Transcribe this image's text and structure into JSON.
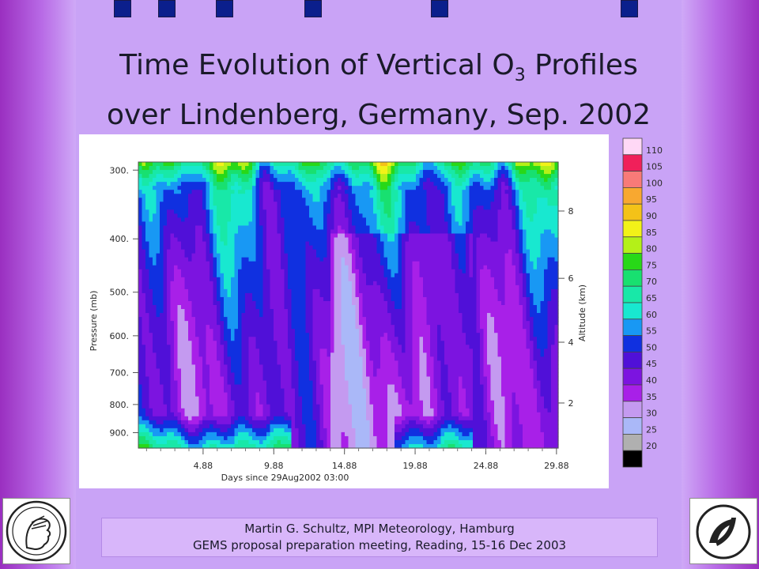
{
  "slide": {
    "title_line1_prefix": "Time Evolution of Vertical O",
    "title_line1_sub": "3",
    "title_line1_suffix": " Profiles",
    "title_line2": "over Lindenberg, Germany, Sep. 2002",
    "footer_line1": "Martin G. Schultz, MPI Meteorology, Hamburg",
    "footer_line2": "GEMS proposal preparation meeting, Reading, 15-16 Dec 2003",
    "left_logo_icon": "minerva-head-icon",
    "right_logo_icon": "dkrz-logo-icon",
    "accent_squares_color": "#0b1f8c"
  },
  "chart_data": {
    "type": "heatmap",
    "title": "",
    "xlabel": "Days since 29Aug2002 03:00",
    "ylabel": "Pressure (mb)",
    "ylabel_right": "Altitude (km)",
    "x_ticks": [
      "4.88",
      "9.88",
      "14.88",
      "19.88",
      "24.88",
      "29.88"
    ],
    "x_tick_values": [
      4.88,
      9.88,
      14.88,
      19.88,
      24.88,
      29.88
    ],
    "xlim": [
      0.3,
      30.0
    ],
    "y_ticks": [
      "300.",
      "400.",
      "500.",
      "600.",
      "700.",
      "800.",
      "900."
    ],
    "y_tick_values": [
      300,
      400,
      500,
      600,
      700,
      800,
      900
    ],
    "ylim": [
      960,
      290
    ],
    "y_scale": "log-pressure",
    "right_ticks": [
      "2",
      "4",
      "6",
      "8"
    ],
    "right_tick_values_km": [
      2,
      4,
      6,
      8
    ],
    "colorbar": {
      "labels": [
        "110",
        "105",
        "100",
        "95",
        "90",
        "85",
        "80",
        "75",
        "70",
        "65",
        "60",
        "55",
        "50",
        "45",
        "40",
        "35",
        "30",
        "25",
        "20"
      ],
      "colors": [
        "#ffd8f6",
        "#f0205a",
        "#f87a78",
        "#f8a830",
        "#f4c218",
        "#f2f218",
        "#b4f018",
        "#28d818",
        "#18e070",
        "#18e8a8",
        "#18e8d0",
        "#1898f4",
        "#1030e0",
        "#5010d8",
        "#7c14e0",
        "#a820e8",
        "#c49af0",
        "#aab8f8",
        "#b0b0b0",
        "#000000"
      ]
    },
    "grid": false,
    "legend": "colorbar-right"
  }
}
